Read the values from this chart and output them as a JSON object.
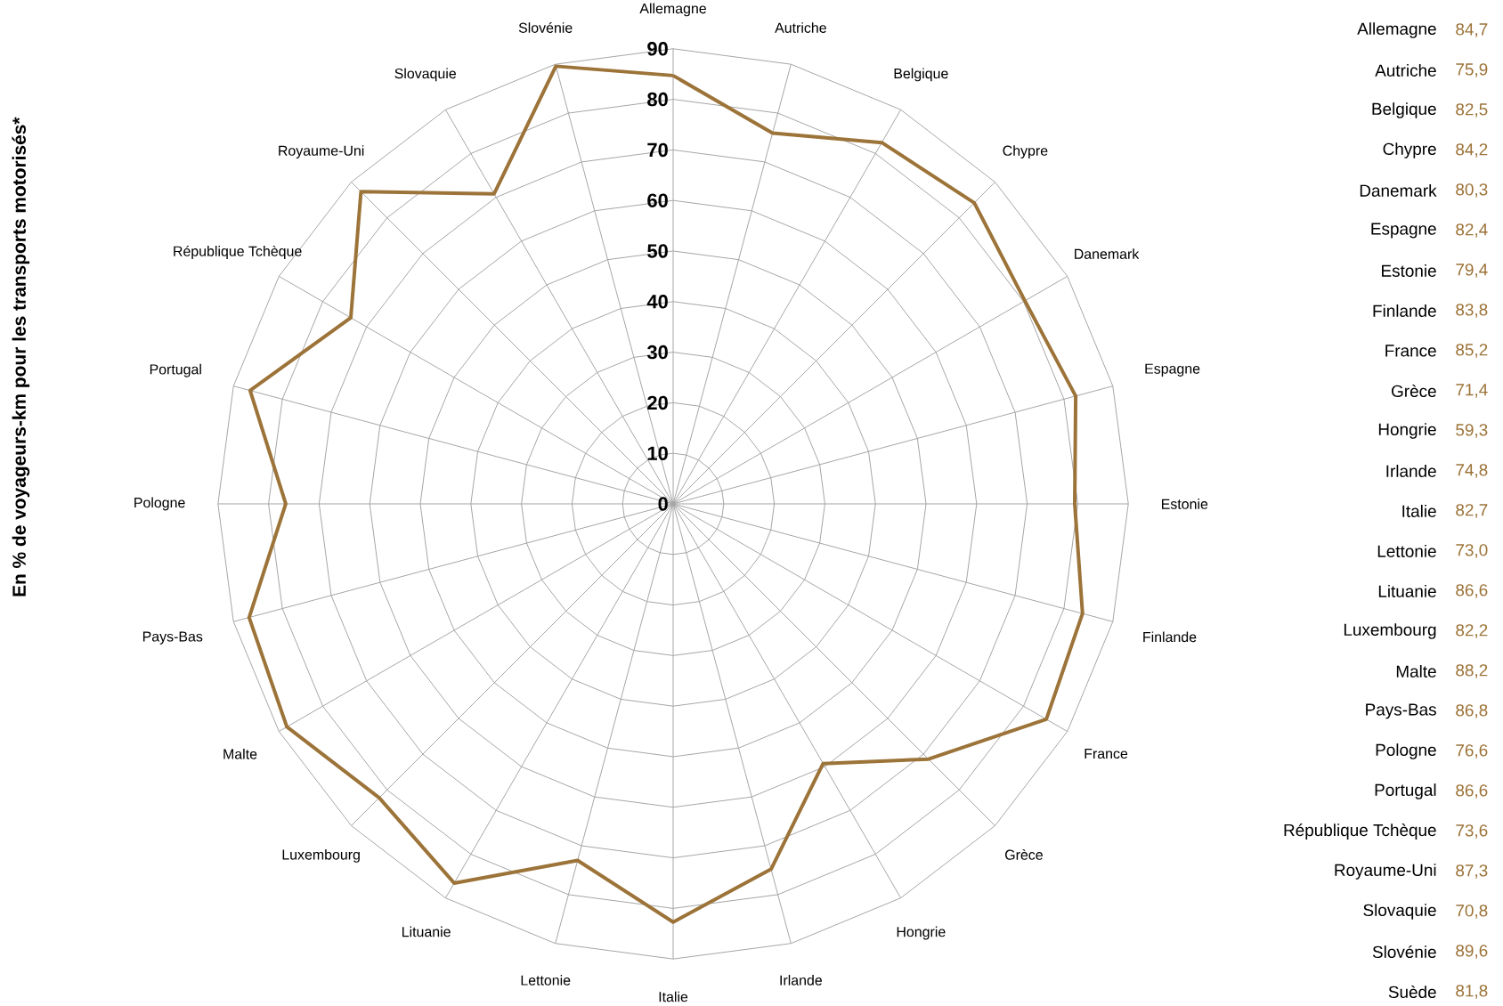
{
  "chart_data": {
    "type": "radar",
    "ylabel": "En % de voyageurs-km pour les transports motorisés*",
    "categories": [
      "Allemagne",
      "Autriche",
      "Belgique",
      "Chypre",
      "Danemark",
      "Espagne",
      "Estonie",
      "Finlande",
      "France",
      "Grèce",
      "Hongrie",
      "Irlande",
      "Italie",
      "Lettonie",
      "Lituanie",
      "Luxembourg",
      "Malte",
      "Pays-Bas",
      "Pologne",
      "Portugal",
      "République Tchèque",
      "Royaume-Uni",
      "Slovaquie",
      "Slovénie"
    ],
    "series": [
      {
        "color": "#9c7338",
        "values": [
          84.7,
          75.9,
          82.5,
          84.2,
          80.3,
          82.4,
          79.4,
          83.8,
          85.2,
          71.4,
          59.3,
          74.8,
          82.7,
          73.0,
          86.6,
          82.2,
          88.2,
          86.8,
          76.6,
          86.6,
          73.6,
          87.3,
          70.8,
          89.6
        ]
      }
    ],
    "annotations": [
      "Allemagne",
      "84,7",
      "Autriche",
      "75,9",
      "Belgique",
      "82,5",
      "Chypre",
      "84,2",
      "Danemark",
      "80,3",
      "Espagne",
      "82,4",
      "Estonie",
      "79,4",
      "Finlande",
      "83,8",
      "France",
      "85,2",
      "Grèce",
      "71,4",
      "Hongrie",
      "59,3",
      "Irlande",
      "74,8",
      "Italie",
      "82,7",
      "Lettonie",
      "73,0",
      "Lituanie",
      "86,6",
      "Luxembourg",
      "82,2",
      "Malte",
      "88,2",
      "Pays-Bas",
      "86,8",
      "Pologne",
      "76,6",
      "Portugal",
      "86,6",
      "République Tchèque",
      "73,6",
      "Royaume-Uni",
      "87,3",
      "Slovaquie",
      "70,8",
      "Slovénie",
      "89,6",
      "Suède",
      "81,8"
    ],
    "ylim": [
      0,
      90
    ],
    "yticks": [
      0,
      10,
      20,
      30,
      40,
      50,
      60,
      70,
      80,
      90
    ],
    "grid": true
  }
}
